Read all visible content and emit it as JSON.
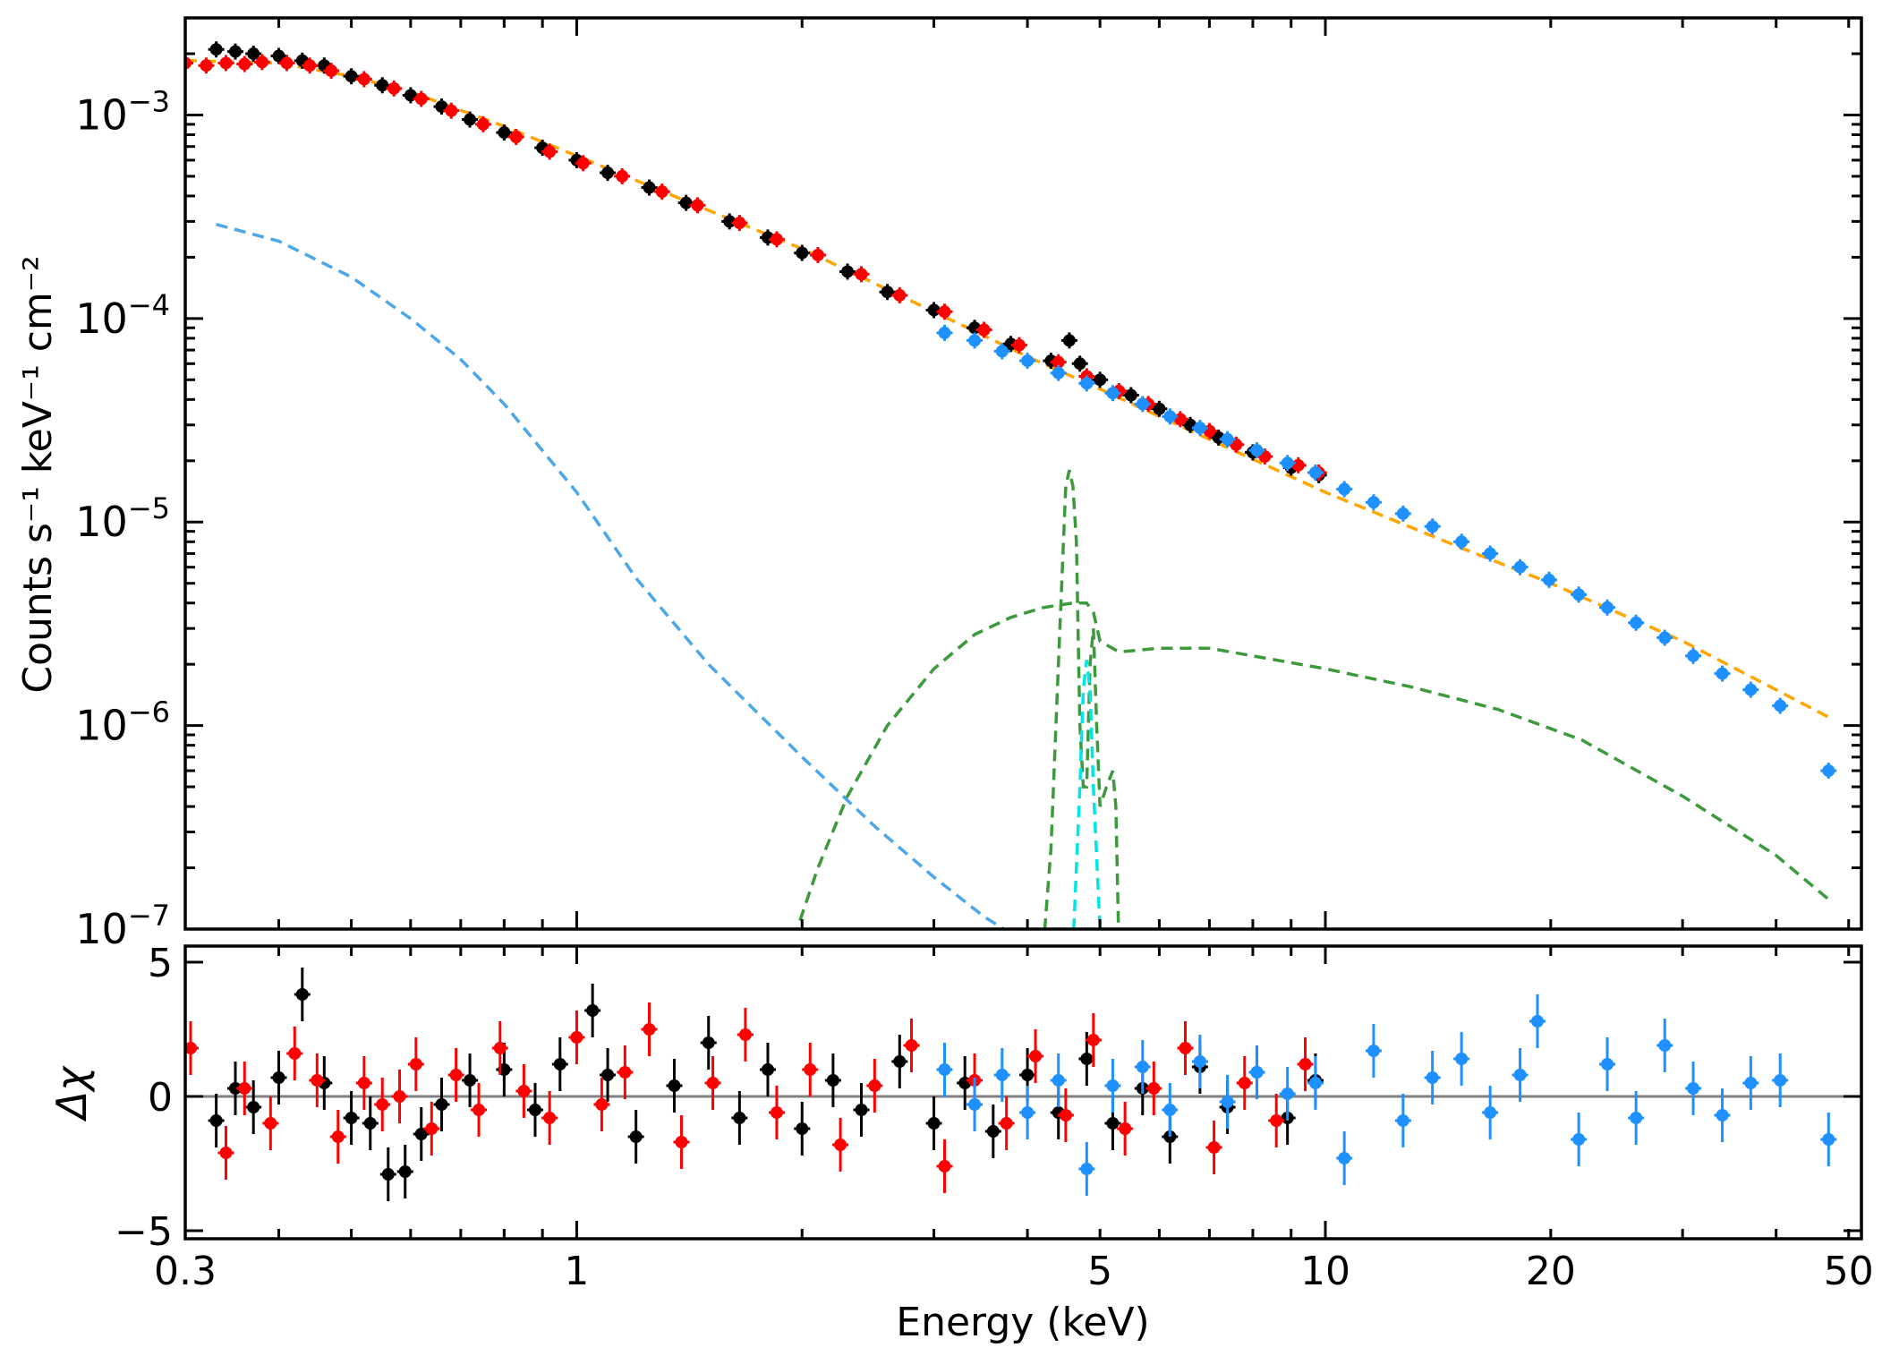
{
  "chart_data": [
    {
      "type": "scatter",
      "panel": "spectrum",
      "title": "",
      "xlabel": "",
      "ylabel": "Counts s⁻¹ keV⁻¹ cm⁻²",
      "xscale": "log",
      "yscale": "log",
      "xlim": [
        0.3,
        52
      ],
      "ylim": [
        1e-07,
        0.003
      ],
      "y_tick_labels": [
        {
          "value": 0.001,
          "base": "10",
          "exp": "−3"
        },
        {
          "value": 0.0001,
          "base": "10",
          "exp": "−4"
        },
        {
          "value": 1e-05,
          "base": "10",
          "exp": "−5"
        },
        {
          "value": 1e-06,
          "base": "10",
          "exp": "−6"
        },
        {
          "value": 1e-07,
          "base": "10",
          "exp": "−7"
        }
      ],
      "grid": false,
      "legend": "none",
      "series": [
        {
          "key": "black",
          "color": "#000000",
          "kind": "data",
          "x": [
            0.33,
            0.35,
            0.37,
            0.4,
            0.43,
            0.46,
            0.5,
            0.55,
            0.6,
            0.66,
            0.72,
            0.8,
            0.9,
            1.0,
            1.1,
            1.25,
            1.4,
            1.6,
            1.8,
            2.0,
            2.3,
            2.6,
            3.0,
            3.4,
            3.8,
            4.3,
            4.55,
            4.7,
            5.0,
            5.5,
            6.0,
            6.6,
            7.2,
            8.0,
            9.0,
            9.8
          ],
          "y": [
            0.0021,
            0.00205,
            0.002,
            0.00195,
            0.00185,
            0.00175,
            0.00155,
            0.0014,
            0.00125,
            0.0011,
            0.00095,
            0.00082,
            0.00069,
            0.0006,
            0.00052,
            0.00044,
            0.00037,
            0.0003,
            0.00025,
            0.00021,
            0.00017,
            0.000135,
            0.00011,
            9e-05,
            7.5e-05,
            6.2e-05,
            7.8e-05,
            6e-05,
            5e-05,
            4.2e-05,
            3.6e-05,
            3e-05,
            2.6e-05,
            2.2e-05,
            1.85e-05,
            1.7e-05
          ]
        },
        {
          "key": "red",
          "color": "#ff0000",
          "kind": "data",
          "x": [
            0.3,
            0.32,
            0.34,
            0.36,
            0.38,
            0.41,
            0.44,
            0.47,
            0.52,
            0.57,
            0.62,
            0.68,
            0.75,
            0.83,
            0.92,
            1.02,
            1.15,
            1.3,
            1.45,
            1.65,
            1.85,
            2.1,
            2.4,
            2.7,
            3.1,
            3.5,
            3.9,
            4.4,
            4.8,
            5.3,
            5.8,
            6.4,
            7.0,
            7.6,
            8.3,
            9.2,
            9.8
          ],
          "y": [
            0.0018,
            0.00175,
            0.0018,
            0.00178,
            0.00182,
            0.0018,
            0.00175,
            0.00165,
            0.0015,
            0.00135,
            0.0012,
            0.00105,
            0.0009,
            0.00078,
            0.00066,
            0.00058,
            0.0005,
            0.00042,
            0.00036,
            0.000295,
            0.000245,
            0.000205,
            0.000165,
            0.00013,
            0.000108,
            8.8e-05,
            7.4e-05,
            6.1e-05,
            5.2e-05,
            4.4e-05,
            3.8e-05,
            3.2e-05,
            2.8e-05,
            2.4e-05,
            2.1e-05,
            1.9e-05,
            1.75e-05
          ]
        },
        {
          "key": "blue",
          "color": "#1e90ff",
          "kind": "data",
          "x": [
            3.1,
            3.4,
            3.7,
            4.0,
            4.4,
            4.8,
            5.2,
            5.7,
            6.2,
            6.8,
            7.4,
            8.1,
            8.9,
            9.7,
            10.6,
            11.6,
            12.7,
            13.9,
            15.2,
            16.6,
            18.2,
            19.9,
            21.8,
            23.8,
            26.0,
            28.4,
            31.0,
            33.9,
            37.0,
            40.5,
            47.0
          ],
          "y": [
            8.5e-05,
            7.8e-05,
            6.9e-05,
            6.2e-05,
            5.4e-05,
            4.8e-05,
            4.3e-05,
            3.8e-05,
            3.3e-05,
            2.9e-05,
            2.55e-05,
            2.25e-05,
            1.95e-05,
            1.75e-05,
            1.45e-05,
            1.25e-05,
            1.1e-05,
            9.5e-06,
            8e-06,
            7e-06,
            6e-06,
            5.2e-06,
            4.4e-06,
            3.8e-06,
            3.2e-06,
            2.7e-06,
            2.2e-06,
            1.8e-06,
            1.5e-06,
            1.25e-06,
            6e-07
          ]
        },
        {
          "key": "orange",
          "color": "#ffa500",
          "kind": "model",
          "dash": "dashed",
          "x": [
            0.3,
            0.4,
            0.5,
            0.6,
            0.8,
            1.0,
            1.5,
            2.0,
            3.0,
            4.0,
            5.0,
            7.0,
            10.0,
            15.0,
            20.0,
            30.0,
            47.0
          ],
          "y": [
            0.00185,
            0.0018,
            0.00155,
            0.0013,
            0.00088,
            0.00063,
            0.00034,
            0.00022,
            0.000108,
            6.5e-05,
            4.5e-05,
            2.55e-05,
            1.4e-05,
            7.6e-06,
            5e-06,
            2.6e-06,
            1.1e-06
          ]
        },
        {
          "key": "lightblue",
          "color": "#4da6e8",
          "kind": "model",
          "dash": "dashed",
          "x": [
            0.33,
            0.4,
            0.5,
            0.6,
            0.7,
            0.8,
            1.0,
            1.2,
            1.5,
            2.0,
            2.5,
            3.0,
            3.5,
            4.0
          ],
          "y": [
            0.00029,
            0.00024,
            0.00016,
            0.0001,
            6.3e-05,
            3.8e-05,
            1.4e-05,
            5.3e-06,
            2e-06,
            7e-07,
            3.2e-07,
            1.8e-07,
            1.15e-07,
            8.5e-08
          ]
        },
        {
          "key": "green_cont",
          "color": "#3c9a3c",
          "kind": "model",
          "dash": "dashed",
          "x": [
            1.95,
            2.1,
            2.3,
            2.6,
            3.0,
            3.4,
            3.8,
            4.2,
            4.6,
            4.8,
            4.9,
            5.0,
            5.3,
            6.0,
            7.0,
            8.0,
            10.0,
            13.0,
            17.0,
            22.0,
            30.0,
            40.0,
            47.0
          ],
          "y": [
            9e-08,
            2e-07,
            4.5e-07,
            1e-06,
            1.9e-06,
            2.8e-06,
            3.4e-06,
            3.8e-06,
            4e-06,
            4e-06,
            3.6e-06,
            2.6e-06,
            2.3e-06,
            2.4e-06,
            2.4e-06,
            2.2e-06,
            1.9e-06,
            1.55e-06,
            1.2e-06,
            8.5e-07,
            4.5e-07,
            2.3e-07,
            1.4e-07
          ]
        },
        {
          "key": "green_line",
          "color": "#3c9a3c",
          "kind": "model",
          "dash": "dashed",
          "x": [
            4.2,
            4.3,
            4.4,
            4.5,
            4.55,
            4.6,
            4.65,
            4.7,
            4.75,
            4.8,
            4.85,
            4.9,
            4.95,
            5.0,
            5.1,
            5.2,
            5.25,
            5.3
          ],
          "y": [
            8e-08,
            2.5e-07,
            2e-06,
            1.5e-05,
            1.8e-05,
            1.5e-05,
            8e-06,
            1e-06,
            5e-07,
            5e-07,
            2e-06,
            3e-06,
            1e-06,
            4e-07,
            5e-07,
            6e-07,
            4e-07,
            8e-08
          ]
        },
        {
          "key": "cyan",
          "color": "#00e5e5",
          "kind": "model",
          "dash": "dashed",
          "x": [
            4.6,
            4.7,
            4.75,
            4.8,
            4.85,
            4.9,
            5.0,
            5.05
          ],
          "y": [
            8e-08,
            5e-07,
            1.5e-06,
            2.1e-06,
            1.5e-06,
            5e-07,
            1e-07,
            8e-08
          ]
        }
      ]
    },
    {
      "type": "scatter",
      "panel": "residuals",
      "title": "",
      "xlabel": "Energy (keV)",
      "ylabel": "Δχ",
      "xscale": "log",
      "yscale": "linear",
      "xlim": [
        0.3,
        52
      ],
      "ylim": [
        -5.3,
        5.6
      ],
      "x_tick_labels": [
        {
          "value": 0.3,
          "label": "0.3"
        },
        {
          "value": 1,
          "label": "1"
        },
        {
          "value": 5,
          "label": "5"
        },
        {
          "value": 10,
          "label": "10"
        },
        {
          "value": 20,
          "label": "20"
        },
        {
          "value": 50,
          "label": "50"
        }
      ],
      "y_tick_labels": [
        {
          "value": 5,
          "label": "5"
        },
        {
          "value": 0,
          "label": "0"
        },
        {
          "value": -5,
          "label": "−5"
        }
      ],
      "zero_line": true,
      "grid": false,
      "legend": "none",
      "series": [
        {
          "key": "black",
          "color": "#000000",
          "x": [
            0.33,
            0.35,
            0.37,
            0.4,
            0.43,
            0.46,
            0.5,
            0.53,
            0.56,
            0.59,
            0.62,
            0.66,
            0.72,
            0.8,
            0.88,
            0.95,
            1.05,
            1.1,
            1.2,
            1.35,
            1.5,
            1.65,
            1.8,
            2.0,
            2.2,
            2.4,
            2.7,
            3.0,
            3.3,
            3.6,
            4.0,
            4.4,
            4.8,
            5.2,
            5.7,
            6.2,
            6.8,
            7.4,
            8.1,
            8.9,
            9.7
          ],
          "y": [
            -0.9,
            0.3,
            -0.4,
            0.7,
            3.8,
            0.5,
            -0.8,
            -1.0,
            -2.9,
            -2.8,
            -1.4,
            -0.3,
            0.6,
            1.0,
            -0.5,
            1.2,
            3.2,
            0.8,
            -1.5,
            0.4,
            2.0,
            -0.8,
            1.0,
            -1.2,
            0.6,
            -0.5,
            1.3,
            -1.0,
            0.5,
            -1.3,
            0.8,
            -0.6,
            1.4,
            -1.0,
            0.3,
            -1.5,
            1.1,
            -0.4,
            0.9,
            -0.8,
            0.6
          ]
        },
        {
          "key": "red",
          "color": "#ff0000",
          "x": [
            0.305,
            0.34,
            0.36,
            0.39,
            0.42,
            0.45,
            0.48,
            0.52,
            0.55,
            0.58,
            0.61,
            0.64,
            0.69,
            0.74,
            0.79,
            0.85,
            0.92,
            1.0,
            1.08,
            1.16,
            1.25,
            1.38,
            1.52,
            1.68,
            1.85,
            2.05,
            2.25,
            2.5,
            2.8,
            3.1,
            3.4,
            3.75,
            4.1,
            4.5,
            4.9,
            5.4,
            5.9,
            6.5,
            7.1,
            7.8,
            8.6,
            9.4
          ],
          "y": [
            1.8,
            -2.1,
            0.3,
            -1.0,
            1.6,
            0.6,
            -1.5,
            0.5,
            -0.3,
            0.0,
            1.2,
            -1.2,
            0.8,
            -0.5,
            1.8,
            0.2,
            -0.8,
            2.2,
            -0.3,
            0.9,
            2.5,
            -1.7,
            0.5,
            2.3,
            -0.6,
            1.0,
            -1.8,
            0.4,
            1.9,
            -2.6,
            0.6,
            -1.0,
            1.5,
            -0.7,
            2.1,
            -1.2,
            0.3,
            1.8,
            -1.9,
            0.5,
            -0.9,
            1.2
          ]
        },
        {
          "key": "blue",
          "color": "#1e90ff",
          "x": [
            3.1,
            3.4,
            3.7,
            4.0,
            4.4,
            4.8,
            5.2,
            5.7,
            6.2,
            6.8,
            7.4,
            8.1,
            8.9,
            9.7,
            10.6,
            11.6,
            12.7,
            13.9,
            15.2,
            16.6,
            18.2,
            19.2,
            21.8,
            23.8,
            26.0,
            28.4,
            31.0,
            33.9,
            37.0,
            40.5,
            47.0
          ],
          "y": [
            1.0,
            -0.3,
            0.8,
            -0.6,
            0.6,
            -2.7,
            0.4,
            1.1,
            -0.5,
            1.3,
            -0.2,
            0.9,
            0.1,
            0.5,
            -2.3,
            1.7,
            -0.9,
            0.7,
            1.4,
            -0.6,
            0.8,
            2.8,
            -1.6,
            1.2,
            -0.8,
            1.9,
            0.3,
            -0.7,
            0.5,
            0.6,
            -1.6
          ]
        }
      ]
    }
  ]
}
